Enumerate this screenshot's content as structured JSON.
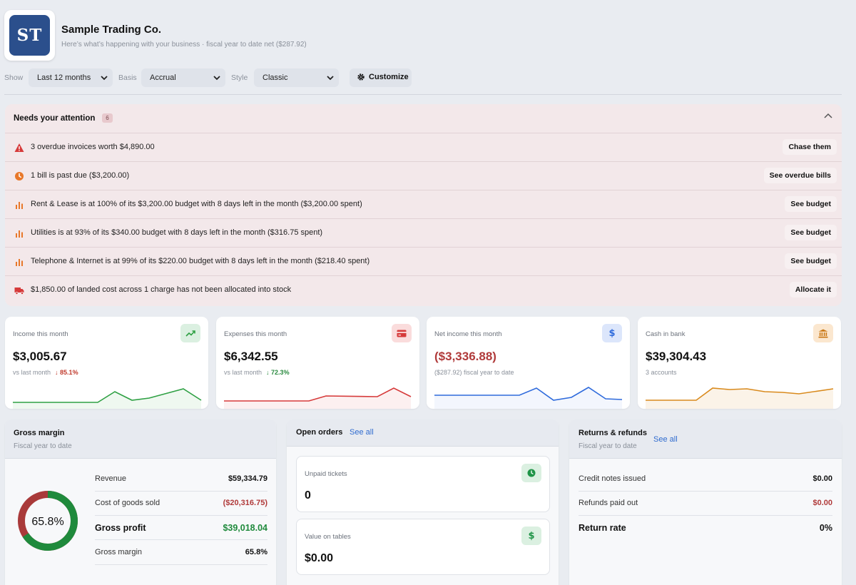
{
  "header": {
    "logo_text": "ST",
    "company": "Sample Trading Co.",
    "subtitle": "Here’s what’s happening with your business · fiscal year to date net ($287.92)"
  },
  "filters": {
    "show_label": "Show",
    "show_value": "Last 12 months",
    "basis_label": "Basis",
    "basis_value": "Accrual",
    "style_label": "Style",
    "style_value": "Classic",
    "customize_label": "Customize"
  },
  "attention": {
    "title": "Needs your attention",
    "count": "6",
    "items": [
      {
        "icon": "warning-triangle-icon",
        "text": "3 overdue invoices worth $4,890.00",
        "action": "Chase them"
      },
      {
        "icon": "clock-icon",
        "text": "1 bill is past due ($3,200.00)",
        "action": "See overdue bills"
      },
      {
        "icon": "bar-chart-icon",
        "text": "Rent & Lease is at 100% of its $3,200.00 budget with 8 days left in the month ($3,200.00 spent)",
        "action": "See budget"
      },
      {
        "icon": "bar-chart-icon",
        "text": "Utilities is at 93% of its $340.00 budget with 8 days left in the month ($316.75 spent)",
        "action": "See budget"
      },
      {
        "icon": "bar-chart-icon",
        "text": "Telephone & Internet is at 99% of its $220.00 budget with 8 days left in the month ($218.40 spent)",
        "action": "See budget"
      },
      {
        "icon": "truck-icon",
        "text": "$1,850.00 of landed cost across 1 charge has not been allocated into stock",
        "action": "Allocate it"
      }
    ]
  },
  "kpis": {
    "income": {
      "label": "Income this month",
      "value": "$3,005.67",
      "sub": "vs last month",
      "delta": "85.1%",
      "color": "#2ea043"
    },
    "expenses": {
      "label": "Expenses this month",
      "value": "$6,342.55",
      "sub": "vs last month",
      "delta": "72.3%",
      "color": "#d63a3a"
    },
    "net": {
      "label": "Net income this month",
      "value": "($3,336.88)",
      "sub": "($287.92) fiscal year to date",
      "color": "#2f6bdc"
    },
    "cash": {
      "label": "Cash in bank",
      "value": "$39,304.43",
      "sub": "3 accounts",
      "color": "#d98a1d"
    }
  },
  "gross_margin": {
    "title": "Gross margin",
    "subtitle": "Fiscal year to date",
    "donut_label": "65.8%",
    "margin_fraction": 0.658,
    "rows": [
      {
        "label": "Revenue",
        "value": "$59,334.79"
      },
      {
        "label": "Cost of goods sold",
        "value": "($20,316.75)"
      },
      {
        "label": "Gross profit",
        "value": "$39,018.04"
      },
      {
        "label": "Gross margin",
        "value": "65.8%"
      }
    ]
  },
  "open_orders": {
    "title": "Open orders",
    "see_all": "See all",
    "cards": [
      {
        "label": "Unpaid tickets",
        "value": "0",
        "icon": "clock-icon"
      },
      {
        "label": "Value on tables",
        "value": "$0.00",
        "icon": "dollar-icon"
      }
    ]
  },
  "returns": {
    "title": "Returns & refunds",
    "subtitle": "Fiscal year to date",
    "see_all": "See all",
    "rows": [
      {
        "label": "Credit notes issued",
        "value": "$0.00"
      },
      {
        "label": "Refunds paid out",
        "value": "$0.00"
      },
      {
        "label": "Return rate",
        "value": "0%"
      }
    ]
  }
}
